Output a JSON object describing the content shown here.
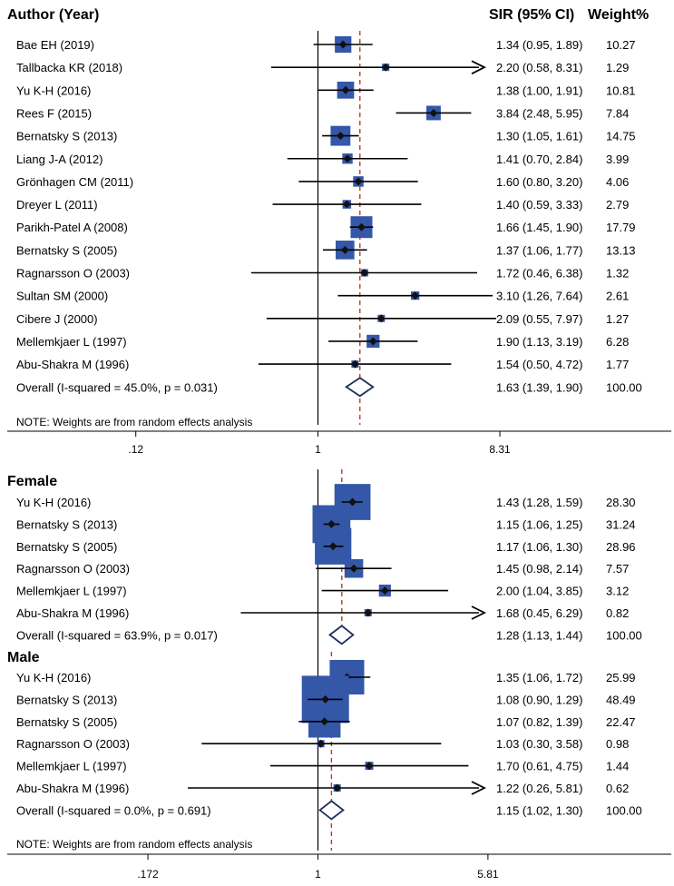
{
  "chart_data": {
    "type": "forest",
    "headers": {
      "study": "Author (Year)",
      "effect": "SIR (95% CI)",
      "weight": "Weight%"
    },
    "overall_panel": {
      "studies": [
        {
          "label": "Bae EH  (2019)",
          "sir": 1.34,
          "lo": 0.95,
          "hi": 1.89,
          "ci_text": "1.34 (0.95, 1.89)",
          "weight": "10.27",
          "w": 10.27
        },
        {
          "label": "Tallbacka KR  (2018)",
          "sir": 2.2,
          "lo": 0.58,
          "hi": 8.31,
          "ci_text": "2.20 (0.58, 8.31)",
          "weight": "1.29",
          "w": 1.29,
          "arrow": true
        },
        {
          "label": "Yu K-H  (2016)",
          "sir": 1.38,
          "lo": 1.0,
          "hi": 1.91,
          "ci_text": "1.38 (1.00, 1.91)",
          "weight": "10.81",
          "w": 10.81
        },
        {
          "label": "Rees F  (2015)",
          "sir": 3.84,
          "lo": 2.48,
          "hi": 5.95,
          "ci_text": "3.84 (2.48, 5.95)",
          "weight": "7.84",
          "w": 7.84
        },
        {
          "label": "Bernatsky S  (2013)",
          "sir": 1.3,
          "lo": 1.05,
          "hi": 1.61,
          "ci_text": "1.30 (1.05, 1.61)",
          "weight": "14.75",
          "w": 14.75
        },
        {
          "label": "Liang J-A  (2012)",
          "sir": 1.41,
          "lo": 0.7,
          "hi": 2.84,
          "ci_text": "1.41 (0.70, 2.84)",
          "weight": "3.99",
          "w": 3.99
        },
        {
          "label": "Grönhagen CM  (2011)",
          "sir": 1.6,
          "lo": 0.8,
          "hi": 3.2,
          "ci_text": "1.60 (0.80, 3.20)",
          "weight": "4.06",
          "w": 4.06
        },
        {
          "label": "Dreyer L  (2011)",
          "sir": 1.4,
          "lo": 0.59,
          "hi": 3.33,
          "ci_text": "1.40 (0.59, 3.33)",
          "weight": "2.79",
          "w": 2.79
        },
        {
          "label": "Parikh-Patel A  (2008)",
          "sir": 1.66,
          "lo": 1.45,
          "hi": 1.9,
          "ci_text": "1.66 (1.45, 1.90)",
          "weight": "17.79",
          "w": 17.79
        },
        {
          "label": "Bernatsky S  (2005)",
          "sir": 1.37,
          "lo": 1.06,
          "hi": 1.77,
          "ci_text": "1.37 (1.06, 1.77)",
          "weight": "13.13",
          "w": 13.13
        },
        {
          "label": "Ragnarsson O  (2003)",
          "sir": 1.72,
          "lo": 0.46,
          "hi": 6.38,
          "ci_text": "1.72 (0.46, 6.38)",
          "weight": "1.32",
          "w": 1.32
        },
        {
          "label": "Sultan SM  (2000)",
          "sir": 3.1,
          "lo": 1.26,
          "hi": 7.64,
          "ci_text": "3.10 (1.26, 7.64)",
          "weight": "2.61",
          "w": 2.61
        },
        {
          "label": "Cibere J  (2000)",
          "sir": 2.09,
          "lo": 0.55,
          "hi": 7.97,
          "ci_text": "2.09 (0.55, 7.97)",
          "weight": "1.27",
          "w": 1.27
        },
        {
          "label": "Mellemkjaer L  (1997)",
          "sir": 1.9,
          "lo": 1.13,
          "hi": 3.19,
          "ci_text": "1.90 (1.13, 3.19)",
          "weight": "6.28",
          "w": 6.28
        },
        {
          "label": "Abu-Shakra M  (1996)",
          "sir": 1.54,
          "lo": 0.5,
          "hi": 4.72,
          "ci_text": "1.54 (0.50, 4.72)",
          "weight": "1.77",
          "w": 1.77
        }
      ],
      "overall": {
        "label": "Overall  (I-squared = 45.0%, p = 0.031)",
        "sir": 1.63,
        "lo": 1.39,
        "hi": 1.9,
        "ci_text": "1.63 (1.39, 1.90)",
        "weight": "100.00"
      },
      "note": "NOTE: Weights are from random effects analysis",
      "xticks": [
        {
          "value": 0.12,
          "label": ".12"
        },
        {
          "value": 1,
          "label": "1"
        },
        {
          "value": 8.31,
          "label": "8.31"
        }
      ]
    },
    "sex_panel": {
      "female": {
        "title": "Female",
        "studies": [
          {
            "label": "Yu K-H  (2016)",
            "sir": 1.43,
            "lo": 1.28,
            "hi": 1.59,
            "ci_text": "1.43 (1.28, 1.59)",
            "weight": "28.30",
            "w": 28.3
          },
          {
            "label": "Bernatsky S  (2013)",
            "sir": 1.15,
            "lo": 1.06,
            "hi": 1.25,
            "ci_text": "1.15 (1.06, 1.25)",
            "weight": "31.24",
            "w": 31.24
          },
          {
            "label": "Bernatsky S  (2005)",
            "sir": 1.17,
            "lo": 1.06,
            "hi": 1.3,
            "ci_text": "1.17 (1.06, 1.30)",
            "weight": "28.96",
            "w": 28.96
          },
          {
            "label": "Ragnarsson O  (2003)",
            "sir": 1.45,
            "lo": 0.98,
            "hi": 2.14,
            "ci_text": "1.45 (0.98, 2.14)",
            "weight": "7.57",
            "w": 7.57
          },
          {
            "label": "Mellemkjaer L  (1997)",
            "sir": 2.0,
            "lo": 1.04,
            "hi": 3.85,
            "ci_text": "2.00 (1.04, 3.85)",
            "weight": "3.12",
            "w": 3.12
          },
          {
            "label": "Abu-Shakra M  (1996)",
            "sir": 1.68,
            "lo": 0.45,
            "hi": 6.29,
            "ci_text": "1.68 (0.45, 6.29)",
            "weight": "0.82",
            "w": 0.82,
            "arrow": true
          }
        ],
        "overall": {
          "label": "Overall  (I-squared = 63.9%, p = 0.017)",
          "sir": 1.28,
          "lo": 1.13,
          "hi": 1.44,
          "ci_text": "1.28 (1.13, 1.44)",
          "weight": "100.00"
        }
      },
      "male": {
        "title": "Male",
        "studies": [
          {
            "label": "Yu K-H  (2016)",
            "sir": 1.35,
            "lo": 1.06,
            "hi": 1.72,
            "ci_text": "1.35 (1.06, 1.72)",
            "weight": "25.99",
            "w": 25.99
          },
          {
            "label": "Bernatsky S  (2013)",
            "sir": 1.08,
            "lo": 0.9,
            "hi": 1.29,
            "ci_text": "1.08 (0.90, 1.29)",
            "weight": "48.49",
            "w": 48.49
          },
          {
            "label": "Bernatsky S  (2005)",
            "sir": 1.07,
            "lo": 0.82,
            "hi": 1.39,
            "ci_text": "1.07 (0.82, 1.39)",
            "weight": "22.47",
            "w": 22.47
          },
          {
            "label": "Ragnarsson O  (2003)",
            "sir": 1.03,
            "lo": 0.3,
            "hi": 3.58,
            "ci_text": "1.03 (0.30, 3.58)",
            "weight": "0.98",
            "w": 0.98
          },
          {
            "label": "Mellemkjaer L  (1997)",
            "sir": 1.7,
            "lo": 0.61,
            "hi": 4.75,
            "ci_text": "1.70 (0.61, 4.75)",
            "weight": "1.44",
            "w": 1.44
          },
          {
            "label": "Abu-Shakra M  (1996)",
            "sir": 1.22,
            "lo": 0.26,
            "hi": 5.81,
            "ci_text": "1.22 (0.26, 5.81)",
            "weight": "0.62",
            "w": 0.62,
            "arrow": true
          }
        ],
        "overall": {
          "label": "Overall  (I-squared = 0.0%, p = 0.691)",
          "sir": 1.15,
          "lo": 1.02,
          "hi": 1.3,
          "ci_text": "1.15 (1.02, 1.30)",
          "weight": "100.00"
        }
      },
      "note": "NOTE: Weights are from random effects analysis",
      "xticks": [
        {
          "value": 0.172,
          "label": ".172"
        },
        {
          "value": 1,
          "label": "1"
        },
        {
          "value": 5.81,
          "label": "5.81"
        }
      ]
    },
    "colors": {
      "box": "#3457a8",
      "ref_line": "#c0392b",
      "diamond": "#1f2d5a",
      "text": "#000000"
    }
  }
}
